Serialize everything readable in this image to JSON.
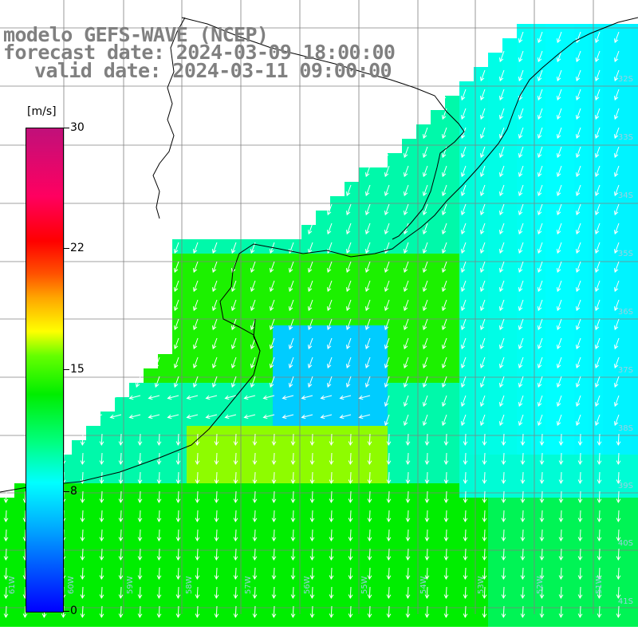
{
  "title": {
    "line1": "modelo GEFS-WAVE (NCEP)",
    "line2": "forecast date: 2024-03-09 18:00:00",
    "line3": "valid date: 2024-03-11 09:00:00"
  },
  "colorbar": {
    "unit": "[m/s]",
    "ticks": [
      "30",
      "22",
      "15",
      "8",
      "0"
    ],
    "colors": [
      "#0000ff",
      "#00ffff",
      "#00ee00",
      "#ffff00",
      "#ff0000",
      "#c0107a"
    ]
  },
  "lat_labels": [
    "32S",
    "33S",
    "34S",
    "35S",
    "36S",
    "37S",
    "38S",
    "39S",
    "40S",
    "41S"
  ],
  "lon_labels": [
    "61W",
    "60W",
    "59W",
    "58W",
    "57W",
    "56W",
    "55W",
    "54W",
    "53W",
    "52W",
    "51W"
  ],
  "map": {
    "field": "wind speed",
    "land_color": "#ffffff",
    "grid_color": "#808080",
    "coast_color": "#000000",
    "arrow_color": "#ffffff"
  }
}
